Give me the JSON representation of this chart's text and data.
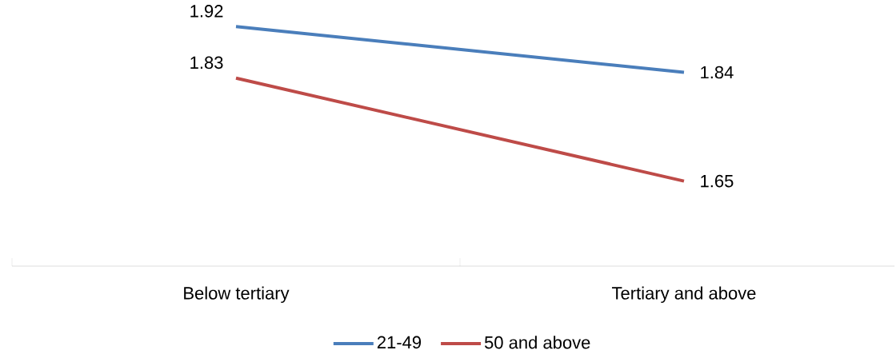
{
  "chart_data": {
    "type": "line",
    "categories": [
      "Below tertiary",
      "Tertiary and above"
    ],
    "series": [
      {
        "name": "21-49",
        "color": "#4a7ebb",
        "values": [
          1.92,
          1.84
        ]
      },
      {
        "name": "50 and above",
        "color": "#be4b48",
        "values": [
          1.83,
          1.65
        ]
      }
    ],
    "data_labels": true,
    "legend": "bottom",
    "marker": "none",
    "line_style": "solid"
  }
}
